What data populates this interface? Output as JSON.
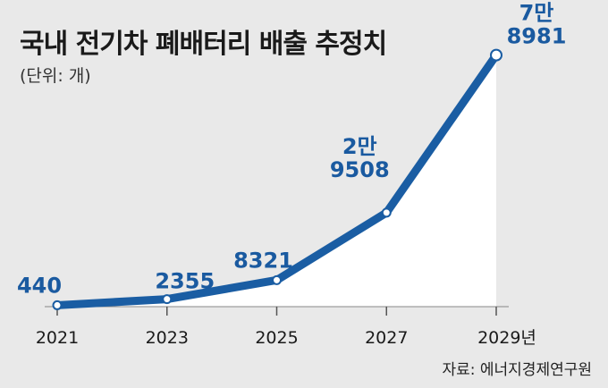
{
  "title": "국내 전기차 폐배터리 배출 추정치",
  "unit_label": "(단위: 개)",
  "source": "자료: 에너지경제연구원",
  "colors": {
    "line": "#1a5da3",
    "label": "#1a5aa0",
    "fill": "#ffffff",
    "background": "#e9e9e9"
  },
  "chart_data": {
    "type": "area",
    "x": [
      2021,
      2023,
      2025,
      2027,
      2029
    ],
    "xticks": [
      "2021",
      "2023",
      "2025",
      "2027",
      "2029년"
    ],
    "values": [
      440,
      2355,
      8321,
      29508,
      78981
    ],
    "value_labels": [
      [
        "440"
      ],
      [
        "2355"
      ],
      [
        "8321"
      ],
      [
        "2만",
        "9508"
      ],
      [
        "7만",
        "8981"
      ]
    ],
    "title": "국내 전기차 폐배터리 배출 추정치",
    "xlabel": "",
    "ylabel": "(단위: 개)",
    "ylim": [
      0,
      80000
    ],
    "grid": false,
    "legend": "none"
  }
}
